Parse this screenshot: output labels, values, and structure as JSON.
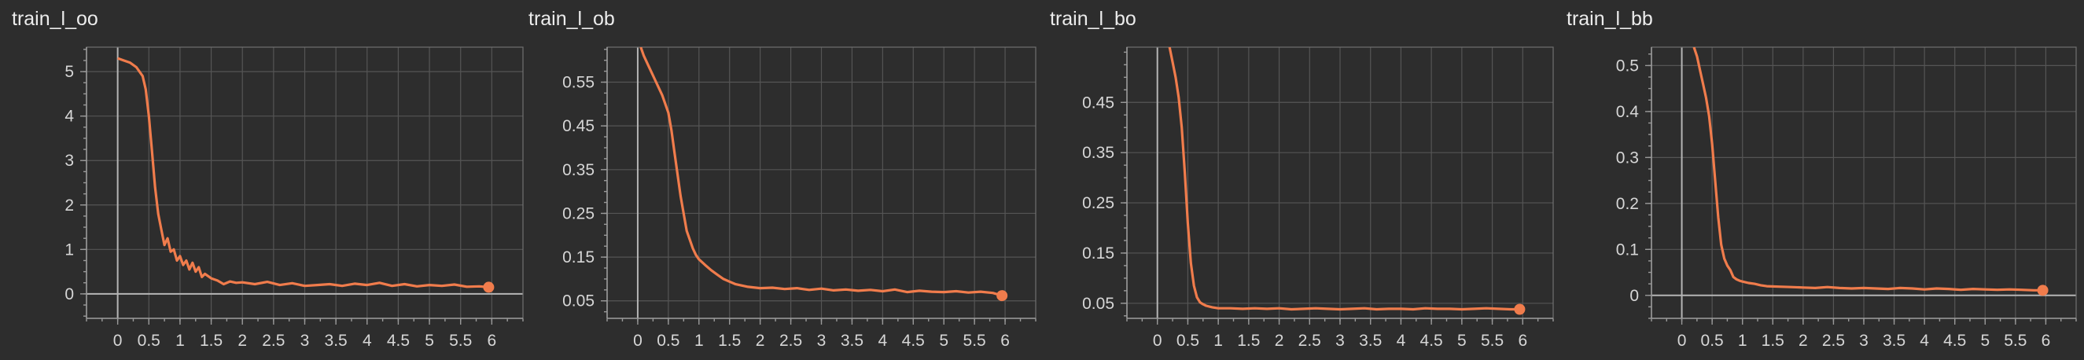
{
  "chart_data": [
    {
      "type": "line",
      "title": "train_l_oo",
      "xlabel": "",
      "ylabel": "",
      "xlim": [
        -0.5,
        6.5
      ],
      "ylim": [
        -0.55,
        5.55
      ],
      "xticks": [
        "0",
        "0.5",
        "1",
        "1.5",
        "2",
        "2.5",
        "3",
        "3.5",
        "4",
        "4.5",
        "5",
        "5.5",
        "6"
      ],
      "yticks": [
        "0",
        "1",
        "2",
        "3",
        "4",
        "5"
      ],
      "color": "#f07c4c",
      "grid": true,
      "series": [
        {
          "x": [
            0,
            0.1,
            0.2,
            0.3,
            0.4,
            0.45,
            0.5,
            0.55,
            0.6,
            0.65,
            0.7,
            0.75,
            0.8,
            0.85,
            0.9,
            0.95,
            1.0,
            1.05,
            1.1,
            1.15,
            1.2,
            1.25,
            1.3,
            1.35,
            1.4,
            1.5,
            1.6,
            1.7,
            1.8,
            1.9,
            2.0,
            2.2,
            2.4,
            2.6,
            2.8,
            3.0,
            3.2,
            3.4,
            3.6,
            3.8,
            4.0,
            4.2,
            4.4,
            4.6,
            4.8,
            5.0,
            5.2,
            5.4,
            5.6,
            5.8,
            5.95
          ],
          "y": [
            5.3,
            5.25,
            5.2,
            5.1,
            4.9,
            4.6,
            4.0,
            3.2,
            2.4,
            1.8,
            1.45,
            1.1,
            1.25,
            0.95,
            1.0,
            0.75,
            0.85,
            0.65,
            0.75,
            0.55,
            0.7,
            0.5,
            0.6,
            0.38,
            0.45,
            0.35,
            0.3,
            0.22,
            0.28,
            0.25,
            0.26,
            0.22,
            0.27,
            0.2,
            0.24,
            0.18,
            0.2,
            0.22,
            0.18,
            0.23,
            0.2,
            0.25,
            0.18,
            0.22,
            0.17,
            0.2,
            0.18,
            0.21,
            0.16,
            0.17,
            0.15
          ]
        }
      ]
    },
    {
      "type": "line",
      "title": "train_l_ob",
      "xlabel": "",
      "ylabel": "",
      "xlim": [
        -0.5,
        6.5
      ],
      "ylim": [
        0.01,
        0.63
      ],
      "xticks": [
        "0",
        "0.5",
        "1",
        "1.5",
        "2",
        "2.5",
        "3",
        "3.5",
        "4",
        "4.5",
        "5",
        "5.5",
        "6"
      ],
      "yticks": [
        "0.05",
        "0.15",
        "0.25",
        "0.35",
        "0.45",
        "0.55"
      ],
      "color": "#f07c4c",
      "grid": true,
      "series": [
        {
          "x": [
            0.05,
            0.1,
            0.2,
            0.3,
            0.4,
            0.5,
            0.55,
            0.6,
            0.65,
            0.7,
            0.75,
            0.8,
            0.85,
            0.9,
            0.95,
            1.0,
            1.1,
            1.2,
            1.3,
            1.4,
            1.5,
            1.6,
            1.8,
            2.0,
            2.2,
            2.4,
            2.6,
            2.8,
            3.0,
            3.2,
            3.4,
            3.6,
            3.8,
            4.0,
            4.2,
            4.4,
            4.6,
            4.8,
            5.0,
            5.2,
            5.4,
            5.6,
            5.8,
            5.95
          ],
          "y": [
            0.63,
            0.61,
            0.58,
            0.55,
            0.52,
            0.48,
            0.44,
            0.39,
            0.34,
            0.29,
            0.25,
            0.21,
            0.19,
            0.17,
            0.155,
            0.145,
            0.132,
            0.12,
            0.11,
            0.1,
            0.094,
            0.088,
            0.082,
            0.079,
            0.08,
            0.077,
            0.079,
            0.075,
            0.078,
            0.074,
            0.076,
            0.073,
            0.075,
            0.072,
            0.076,
            0.07,
            0.073,
            0.071,
            0.07,
            0.072,
            0.069,
            0.071,
            0.068,
            0.062
          ]
        }
      ]
    },
    {
      "type": "line",
      "title": "train_l_bo",
      "xlabel": "",
      "ylabel": "",
      "xlim": [
        -0.5,
        6.5
      ],
      "ylim": [
        0.02,
        0.56
      ],
      "xticks": [
        "0",
        "0.5",
        "1",
        "1.5",
        "2",
        "2.5",
        "3",
        "3.5",
        "4",
        "4.5",
        "5",
        "5.5",
        "6"
      ],
      "yticks": [
        "0.05",
        "0.15",
        "0.25",
        "0.35",
        "0.45"
      ],
      "color": "#f07c4c",
      "grid": true,
      "series": [
        {
          "x": [
            0.2,
            0.25,
            0.3,
            0.35,
            0.4,
            0.45,
            0.5,
            0.55,
            0.6,
            0.65,
            0.7,
            0.75,
            0.8,
            0.9,
            1.0,
            1.2,
            1.4,
            1.6,
            1.8,
            2.0,
            2.2,
            2.4,
            2.6,
            2.8,
            3.0,
            3.2,
            3.4,
            3.6,
            3.8,
            4.0,
            4.2,
            4.4,
            4.6,
            4.8,
            5.0,
            5.2,
            5.4,
            5.6,
            5.8,
            5.95
          ],
          "y": [
            0.56,
            0.53,
            0.5,
            0.46,
            0.4,
            0.31,
            0.21,
            0.13,
            0.085,
            0.062,
            0.052,
            0.048,
            0.045,
            0.042,
            0.04,
            0.04,
            0.039,
            0.04,
            0.039,
            0.04,
            0.038,
            0.039,
            0.04,
            0.039,
            0.038,
            0.039,
            0.04,
            0.038,
            0.039,
            0.039,
            0.038,
            0.04,
            0.039,
            0.039,
            0.038,
            0.039,
            0.04,
            0.039,
            0.038,
            0.038
          ]
        }
      ]
    },
    {
      "type": "line",
      "title": "train_l_bb",
      "xlabel": "",
      "ylabel": "",
      "xlim": [
        -0.5,
        6.5
      ],
      "ylim": [
        -0.05,
        0.54
      ],
      "xticks": [
        "0",
        "0.5",
        "1",
        "1.5",
        "2",
        "2.5",
        "3",
        "3.5",
        "4",
        "4.5",
        "5",
        "5.5",
        "6"
      ],
      "yticks": [
        "0",
        "0.1",
        "0.2",
        "0.3",
        "0.4",
        "0.5"
      ],
      "color": "#f07c4c",
      "grid": true,
      "series": [
        {
          "x": [
            0.2,
            0.25,
            0.3,
            0.35,
            0.4,
            0.45,
            0.5,
            0.55,
            0.6,
            0.65,
            0.7,
            0.75,
            0.8,
            0.85,
            0.9,
            0.95,
            1.0,
            1.1,
            1.2,
            1.3,
            1.4,
            1.6,
            1.8,
            2.0,
            2.2,
            2.4,
            2.6,
            2.8,
            3.0,
            3.2,
            3.4,
            3.6,
            3.8,
            4.0,
            4.2,
            4.4,
            4.6,
            4.8,
            5.0,
            5.2,
            5.4,
            5.6,
            5.8,
            5.95
          ],
          "y": [
            0.54,
            0.52,
            0.49,
            0.46,
            0.43,
            0.39,
            0.33,
            0.25,
            0.17,
            0.11,
            0.08,
            0.065,
            0.055,
            0.04,
            0.035,
            0.032,
            0.03,
            0.027,
            0.025,
            0.022,
            0.02,
            0.019,
            0.018,
            0.017,
            0.016,
            0.018,
            0.016,
            0.015,
            0.016,
            0.015,
            0.014,
            0.016,
            0.015,
            0.013,
            0.015,
            0.014,
            0.012,
            0.014,
            0.013,
            0.012,
            0.013,
            0.012,
            0.011,
            0.011
          ]
        }
      ]
    }
  ]
}
